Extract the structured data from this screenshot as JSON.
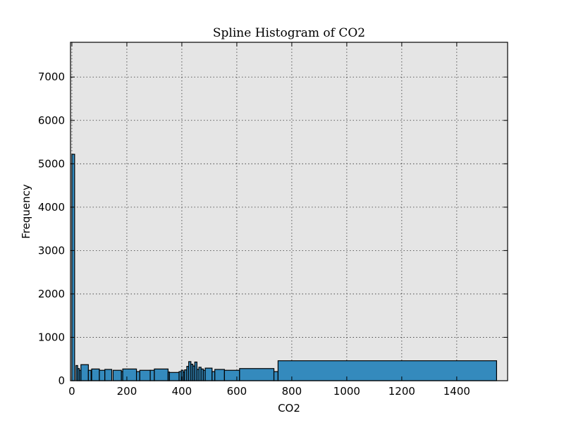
{
  "chart_data": {
    "type": "bar",
    "title": "Spline Histogram of CO2",
    "xlabel": "CO2",
    "ylabel": "Frequency",
    "xlim": [
      -5,
      1585
    ],
    "ylim": [
      0,
      7800
    ],
    "x_ticks": [
      0,
      200,
      400,
      600,
      800,
      1000,
      1200,
      1400
    ],
    "y_ticks": [
      0,
      1000,
      2000,
      3000,
      4000,
      5000,
      6000,
      7000
    ],
    "grid": true,
    "colors": {
      "bar": "#348ABD",
      "plot_bg": "#E5E5E5"
    },
    "bins": [
      {
        "x0": 0,
        "x1": 10,
        "count": 5220
      },
      {
        "x0": 15,
        "x1": 21,
        "count": 350
      },
      {
        "x0": 21,
        "x1": 27,
        "count": 280
      },
      {
        "x0": 27,
        "x1": 33,
        "count": 240
      },
      {
        "x0": 33,
        "x1": 60,
        "count": 370
      },
      {
        "x0": 60,
        "x1": 70,
        "count": 240
      },
      {
        "x0": 72,
        "x1": 100,
        "count": 270
      },
      {
        "x0": 100,
        "x1": 120,
        "count": 240
      },
      {
        "x0": 120,
        "x1": 145,
        "count": 260
      },
      {
        "x0": 150,
        "x1": 180,
        "count": 240
      },
      {
        "x0": 180,
        "x1": 185,
        "count": 210
      },
      {
        "x0": 185,
        "x1": 235,
        "count": 270
      },
      {
        "x0": 235,
        "x1": 247,
        "count": 210
      },
      {
        "x0": 247,
        "x1": 285,
        "count": 240
      },
      {
        "x0": 285,
        "x1": 300,
        "count": 240
      },
      {
        "x0": 300,
        "x1": 350,
        "count": 270
      },
      {
        "x0": 350,
        "x1": 355,
        "count": 200
      },
      {
        "x0": 355,
        "x1": 390,
        "count": 190
      },
      {
        "x0": 390,
        "x1": 398,
        "count": 210
      },
      {
        "x0": 398,
        "x1": 405,
        "count": 240
      },
      {
        "x0": 405,
        "x1": 410,
        "count": 200
      },
      {
        "x0": 410,
        "x1": 418,
        "count": 250
      },
      {
        "x0": 418,
        "x1": 425,
        "count": 330
      },
      {
        "x0": 425,
        "x1": 433,
        "count": 440
      },
      {
        "x0": 433,
        "x1": 440,
        "count": 380
      },
      {
        "x0": 440,
        "x1": 447,
        "count": 340
      },
      {
        "x0": 447,
        "x1": 455,
        "count": 430
      },
      {
        "x0": 455,
        "x1": 462,
        "count": 260
      },
      {
        "x0": 462,
        "x1": 470,
        "count": 310
      },
      {
        "x0": 470,
        "x1": 478,
        "count": 270
      },
      {
        "x0": 478,
        "x1": 485,
        "count": 240
      },
      {
        "x0": 485,
        "x1": 510,
        "count": 290
      },
      {
        "x0": 510,
        "x1": 520,
        "count": 210
      },
      {
        "x0": 520,
        "x1": 555,
        "count": 260
      },
      {
        "x0": 555,
        "x1": 610,
        "count": 240
      },
      {
        "x0": 610,
        "x1": 735,
        "count": 280
      },
      {
        "x0": 735,
        "x1": 750,
        "count": 210
      },
      {
        "x0": 750,
        "x1": 1545,
        "count": 460
      }
    ]
  }
}
